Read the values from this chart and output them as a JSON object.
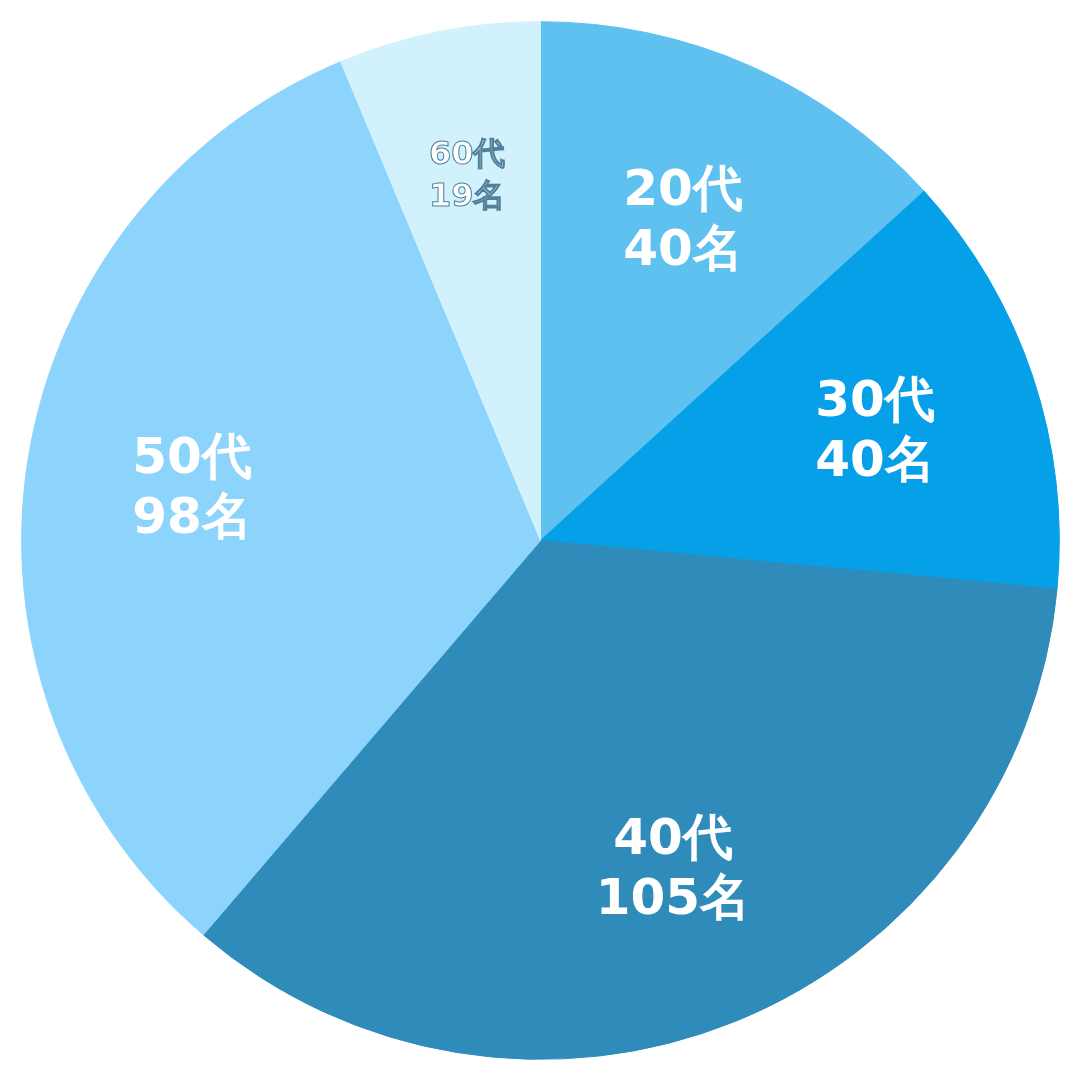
{
  "chart_data": {
    "type": "pie",
    "categories": [
      "20代",
      "30代",
      "40代",
      "50代",
      "60代"
    ],
    "values": [
      40,
      40,
      105,
      98,
      19
    ],
    "value_labels": [
      "40名",
      "40名",
      "105名",
      "98名",
      "19名"
    ],
    "colors": [
      "#5fc1ef",
      "#06a0e8",
      "#2e8bba",
      "#8dd4fc",
      "#d1f1fd"
    ],
    "legend": false
  }
}
